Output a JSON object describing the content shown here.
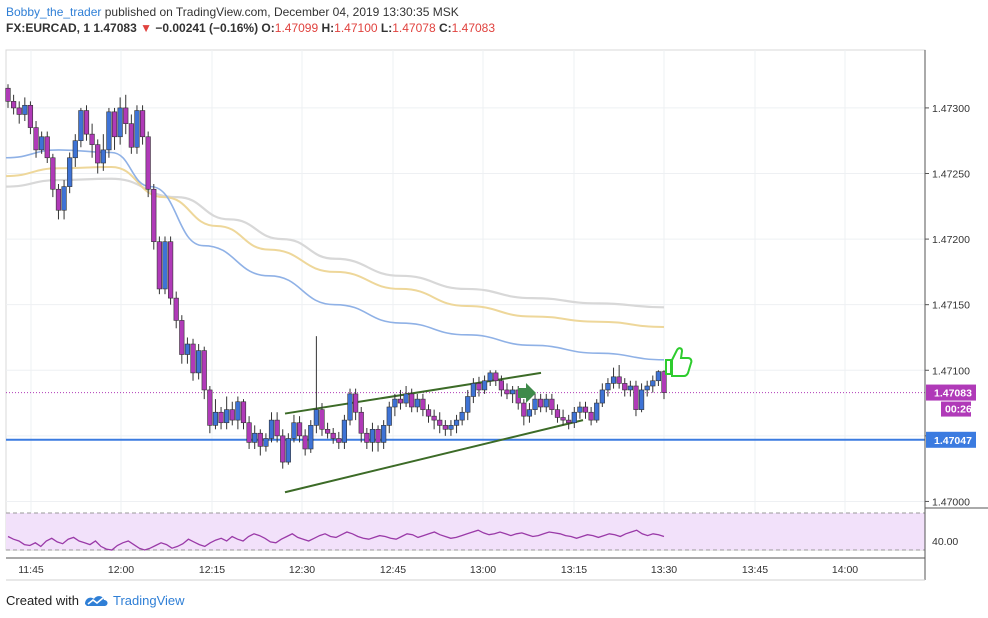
{
  "header": {
    "author": "Bobby_the_trader",
    "published": " published on TradingView.com, December 04, 2019 13:30:35 MSK",
    "symbol": "FX:EURCAD, 1",
    "last": "1.47083",
    "arrow": "▼",
    "change": "−0.00241 (−0.16%)",
    "o_label": "O:",
    "o": "1.47099",
    "h_label": "H:",
    "h": "1.47100",
    "l_label": "L:",
    "l": "1.47078",
    "c_label": "C:",
    "c": "1.47083"
  },
  "footer": {
    "created_with": "Created with",
    "brand": "TradingView"
  },
  "colors": {
    "up": "#3e73d6",
    "down": "#b03ab8",
    "ma_blue": "#8fb1e6",
    "ma_yellow": "#eed79a",
    "ma_grey": "#d8d8d8",
    "support": "#3b7be0",
    "trend": "#3c6b27",
    "rsi": "#9a3aa8",
    "rsi_band": "#f2e1fa",
    "price_tag": "#b03ab8",
    "support_tag": "#3b7be0"
  },
  "icons": [
    "thumbs-up-icon",
    "arrow-right-icon",
    "tradingview-logo-icon"
  ],
  "chart_data": {
    "type": "candlestick",
    "ylim": [
      1.46995,
      1.47335
    ],
    "y_ticks": [
      "1.47000",
      "1.47050",
      "1.47100",
      "1.47150",
      "1.47200",
      "1.47250",
      "1.47300"
    ],
    "x_ticks": [
      "11:45",
      "12:00",
      "12:15",
      "12:30",
      "12:45",
      "13:00",
      "13:15",
      "13:30",
      "13:45",
      "14:00"
    ],
    "current_price": "1.47083",
    "countdown": "00:26",
    "support_level": "1.47047",
    "rsi_level": "40.00",
    "candles": [
      [
        1.47315,
        1.47305,
        1.47318,
        1.473
      ],
      [
        1.47305,
        1.473,
        1.4731,
        1.47295
      ],
      [
        1.473,
        1.47295,
        1.47305,
        1.47288
      ],
      [
        1.47295,
        1.47302,
        1.47308,
        1.4729
      ],
      [
        1.47302,
        1.47285,
        1.47305,
        1.4728
      ],
      [
        1.47285,
        1.47268,
        1.4729,
        1.47262
      ],
      [
        1.47268,
        1.47278,
        1.47282,
        1.47265
      ],
      [
        1.47278,
        1.47262,
        1.47282,
        1.47258
      ],
      [
        1.47262,
        1.47238,
        1.47265,
        1.47232
      ],
      [
        1.47238,
        1.47222,
        1.47242,
        1.47215
      ],
      [
        1.47222,
        1.4724,
        1.47245,
        1.47215
      ],
      [
        1.4724,
        1.47262,
        1.47266,
        1.47235
      ],
      [
        1.47262,
        1.47275,
        1.4728,
        1.47255
      ],
      [
        1.47275,
        1.47298,
        1.473,
        1.4727
      ],
      [
        1.47298,
        1.4728,
        1.47302,
        1.47275
      ],
      [
        1.4728,
        1.47272,
        1.47288,
        1.47262
      ],
      [
        1.47272,
        1.47258,
        1.47276,
        1.4725
      ],
      [
        1.47258,
        1.47268,
        1.4728,
        1.47252
      ],
      [
        1.47268,
        1.47297,
        1.473,
        1.47262
      ],
      [
        1.47297,
        1.47278,
        1.473,
        1.47268
      ],
      [
        1.47278,
        1.473,
        1.47308,
        1.47272
      ],
      [
        1.473,
        1.47288,
        1.4731,
        1.4728
      ],
      [
        1.47288,
        1.4727,
        1.47295,
        1.47265
      ],
      [
        1.4727,
        1.47298,
        1.47302,
        1.47265
      ],
      [
        1.47298,
        1.47278,
        1.47302,
        1.47272
      ],
      [
        1.47278,
        1.47238,
        1.47282,
        1.47232
      ],
      [
        1.47238,
        1.47198,
        1.47242,
        1.47192
      ],
      [
        1.47198,
        1.47162,
        1.47202,
        1.47158
      ],
      [
        1.47162,
        1.47198,
        1.47202,
        1.47158
      ],
      [
        1.47198,
        1.47155,
        1.47202,
        1.4715
      ],
      [
        1.47155,
        1.47138,
        1.4716,
        1.47132
      ],
      [
        1.47138,
        1.47112,
        1.47142,
        1.47105
      ],
      [
        1.47112,
        1.4712,
        1.47125,
        1.47105
      ],
      [
        1.4712,
        1.47098,
        1.47124,
        1.47092
      ],
      [
        1.47098,
        1.47115,
        1.4712,
        1.47093
      ],
      [
        1.47115,
        1.47085,
        1.47118,
        1.47078
      ],
      [
        1.47085,
        1.47058,
        1.47088,
        1.47052
      ],
      [
        1.47058,
        1.47068,
        1.47078,
        1.47055
      ],
      [
        1.47068,
        1.4706,
        1.47072,
        1.47055
      ],
      [
        1.4706,
        1.4707,
        1.4708,
        1.47055
      ],
      [
        1.4707,
        1.47062,
        1.47076,
        1.47058
      ],
      [
        1.47062,
        1.47076,
        1.4708,
        1.47055
      ],
      [
        1.47076,
        1.4706,
        1.47078,
        1.47055
      ],
      [
        1.4706,
        1.47045,
        1.47065,
        1.4704
      ],
      [
        1.47045,
        1.47052,
        1.47058,
        1.4704
      ],
      [
        1.47052,
        1.47042,
        1.47055,
        1.47035
      ],
      [
        1.47042,
        1.47048,
        1.47052,
        1.47038
      ],
      [
        1.47048,
        1.47062,
        1.47068,
        1.47045
      ],
      [
        1.47062,
        1.4705,
        1.47068,
        1.47045
      ],
      [
        1.4705,
        1.4703,
        1.47055,
        1.47025
      ],
      [
        1.4703,
        1.47048,
        1.47052,
        1.47028
      ],
      [
        1.47048,
        1.4706,
        1.47066,
        1.47045
      ],
      [
        1.4706,
        1.4705,
        1.47065,
        1.47045
      ],
      [
        1.4705,
        1.4704,
        1.47055,
        1.47035
      ],
      [
        1.4704,
        1.47058,
        1.47062,
        1.47037
      ],
      [
        1.47058,
        1.4707,
        1.47126,
        1.47052
      ],
      [
        1.4707,
        1.47055,
        1.47075,
        1.4705
      ],
      [
        1.47055,
        1.47052,
        1.4706,
        1.47048
      ],
      [
        1.47052,
        1.47048,
        1.47056,
        1.47044
      ],
      [
        1.47048,
        1.47045,
        1.47053,
        1.4704
      ],
      [
        1.47045,
        1.47062,
        1.47066,
        1.4704
      ],
      [
        1.47062,
        1.47082,
        1.47086,
        1.47058
      ],
      [
        1.47082,
        1.47068,
        1.47086,
        1.47062
      ],
      [
        1.47068,
        1.47052,
        1.47072,
        1.47045
      ],
      [
        1.47052,
        1.47045,
        1.47056,
        1.4704
      ],
      [
        1.47045,
        1.47055,
        1.4706,
        1.47038
      ],
      [
        1.47055,
        1.47045,
        1.47058,
        1.47038
      ],
      [
        1.47045,
        1.47058,
        1.47062,
        1.4704
      ],
      [
        1.47058,
        1.47072,
        1.47076,
        1.47052
      ],
      [
        1.47072,
        1.47078,
        1.47082,
        1.47065
      ],
      [
        1.47078,
        1.47075,
        1.47085,
        1.4707
      ],
      [
        1.47075,
        1.47082,
        1.47088,
        1.47072
      ],
      [
        1.47082,
        1.47072,
        1.47086,
        1.47068
      ],
      [
        1.47072,
        1.47078,
        1.47082,
        1.47068
      ],
      [
        1.47078,
        1.4707,
        1.47082,
        1.47065
      ],
      [
        1.4707,
        1.47065,
        1.47074,
        1.4706
      ],
      [
        1.47065,
        1.47062,
        1.4707,
        1.47055
      ],
      [
        1.47062,
        1.47058,
        1.47068,
        1.47052
      ],
      [
        1.47058,
        1.47055,
        1.47062,
        1.4705
      ],
      [
        1.47055,
        1.47058,
        1.47062,
        1.4705
      ],
      [
        1.47058,
        1.47062,
        1.47066,
        1.47052
      ],
      [
        1.47062,
        1.47068,
        1.47072,
        1.47058
      ],
      [
        1.47068,
        1.4708,
        1.47085,
        1.47062
      ],
      [
        1.4708,
        1.4709,
        1.47094,
        1.47075
      ],
      [
        1.4709,
        1.47085,
        1.47095,
        1.4708
      ],
      [
        1.47085,
        1.47092,
        1.47096,
        1.47082
      ],
      [
        1.47092,
        1.47098,
        1.471,
        1.47088
      ],
      [
        1.47098,
        1.47092,
        1.471,
        1.47088
      ],
      [
        1.47092,
        1.47085,
        1.47096,
        1.4708
      ],
      [
        1.47085,
        1.47082,
        1.4709,
        1.47078
      ],
      [
        1.47082,
        1.47085,
        1.47088,
        1.47075
      ],
      [
        1.47085,
        1.47075,
        1.47088,
        1.4707
      ],
      [
        1.47075,
        1.47065,
        1.47078,
        1.47058
      ],
      [
        1.47065,
        1.4707,
        1.47075,
        1.4706
      ],
      [
        1.4707,
        1.47078,
        1.47082,
        1.47066
      ],
      [
        1.47078,
        1.47072,
        1.47082,
        1.47068
      ],
      [
        1.47072,
        1.47078,
        1.47082,
        1.47068
      ],
      [
        1.47078,
        1.4707,
        1.47082,
        1.47066
      ],
      [
        1.4707,
        1.47064,
        1.47074,
        1.4706
      ],
      [
        1.47064,
        1.47062,
        1.4707,
        1.47058
      ],
      [
        1.47062,
        1.4706,
        1.47066,
        1.47055
      ],
      [
        1.4706,
        1.47068,
        1.47072,
        1.47056
      ],
      [
        1.47068,
        1.47072,
        1.47076,
        1.47063
      ],
      [
        1.47072,
        1.47068,
        1.47076,
        1.47063
      ],
      [
        1.47068,
        1.47062,
        1.47072,
        1.47058
      ],
      [
        1.47062,
        1.47075,
        1.47078,
        1.4706
      ],
      [
        1.47075,
        1.47085,
        1.4709,
        1.47072
      ],
      [
        1.47085,
        1.4709,
        1.47094,
        1.4708
      ],
      [
        1.4709,
        1.47095,
        1.47102,
        1.47086
      ],
      [
        1.47095,
        1.4709,
        1.47104,
        1.47086
      ],
      [
        1.4709,
        1.47085,
        1.47094,
        1.4708
      ],
      [
        1.47085,
        1.47088,
        1.47092,
        1.4708
      ],
      [
        1.47088,
        1.4707,
        1.47092,
        1.47065
      ],
      [
        1.4707,
        1.47085,
        1.4709,
        1.47068
      ],
      [
        1.47085,
        1.47088,
        1.47092,
        1.4708
      ],
      [
        1.47088,
        1.47092,
        1.47096,
        1.47083
      ],
      [
        1.47092,
        1.47099,
        1.471,
        1.47088
      ],
      [
        1.47099,
        1.47083,
        1.471,
        1.47078
      ]
    ],
    "sma_blue": [
      [
        0,
        1.47262
      ],
      [
        0.08,
        1.47268
      ],
      [
        0.16,
        1.47266
      ],
      [
        0.22,
        1.4724
      ],
      [
        0.3,
        1.47195
      ],
      [
        0.4,
        1.47172
      ],
      [
        0.5,
        1.4715
      ],
      [
        0.6,
        1.47136
      ],
      [
        0.7,
        1.47127
      ],
      [
        0.8,
        1.47119
      ],
      [
        0.9,
        1.47113
      ],
      [
        1,
        1.47108
      ]
    ],
    "sma_yellow": [
      [
        0,
        1.47248
      ],
      [
        0.08,
        1.47254
      ],
      [
        0.16,
        1.47255
      ],
      [
        0.24,
        1.47232
      ],
      [
        0.32,
        1.4721
      ],
      [
        0.4,
        1.47192
      ],
      [
        0.5,
        1.47175
      ],
      [
        0.6,
        1.47162
      ],
      [
        0.7,
        1.47149
      ],
      [
        0.8,
        1.47141
      ],
      [
        0.9,
        1.47137
      ],
      [
        1,
        1.47133
      ]
    ],
    "sma_grey": [
      [
        0,
        1.4724
      ],
      [
        0.08,
        1.47245
      ],
      [
        0.16,
        1.47246
      ],
      [
        0.26,
        1.47232
      ],
      [
        0.34,
        1.47215
      ],
      [
        0.42,
        1.472
      ],
      [
        0.5,
        1.47185
      ],
      [
        0.6,
        1.47172
      ],
      [
        0.7,
        1.47162
      ],
      [
        0.8,
        1.47155
      ],
      [
        0.9,
        1.47151
      ],
      [
        1,
        1.47148
      ]
    ],
    "rsi": [
      55,
      52,
      50,
      46,
      45,
      48,
      44,
      50,
      53,
      49,
      47,
      52,
      54,
      50,
      48,
      46,
      50,
      44,
      41,
      40,
      45,
      48,
      50,
      46,
      42,
      40,
      42,
      45,
      48,
      46,
      42,
      44,
      47,
      52,
      49,
      46,
      44,
      48,
      51,
      53,
      50,
      55,
      52,
      50,
      55,
      58,
      56,
      53,
      49,
      48,
      52,
      55,
      58,
      54,
      52,
      50,
      53,
      56,
      58,
      55,
      54,
      57,
      60,
      58,
      55,
      53,
      52,
      54,
      56,
      55,
      53,
      52,
      55,
      58,
      57,
      54,
      56,
      58,
      60,
      57,
      55,
      53,
      54,
      56,
      58,
      60,
      62,
      59,
      57,
      58,
      60,
      58,
      56,
      58,
      59,
      57,
      55,
      56,
      58,
      60,
      59,
      58,
      56,
      55,
      53,
      55,
      57,
      56,
      54,
      56,
      58,
      57,
      55,
      58,
      60,
      62,
      58,
      56,
      58,
      57,
      55
    ],
    "trend_upper": [
      [
        1.47067,
        "12:30"
      ],
      [
        1.47098,
        "13:08"
      ]
    ],
    "trend_lower": [
      [
        1.47007,
        "12:30"
      ],
      [
        1.47062,
        "13:15"
      ]
    ]
  }
}
